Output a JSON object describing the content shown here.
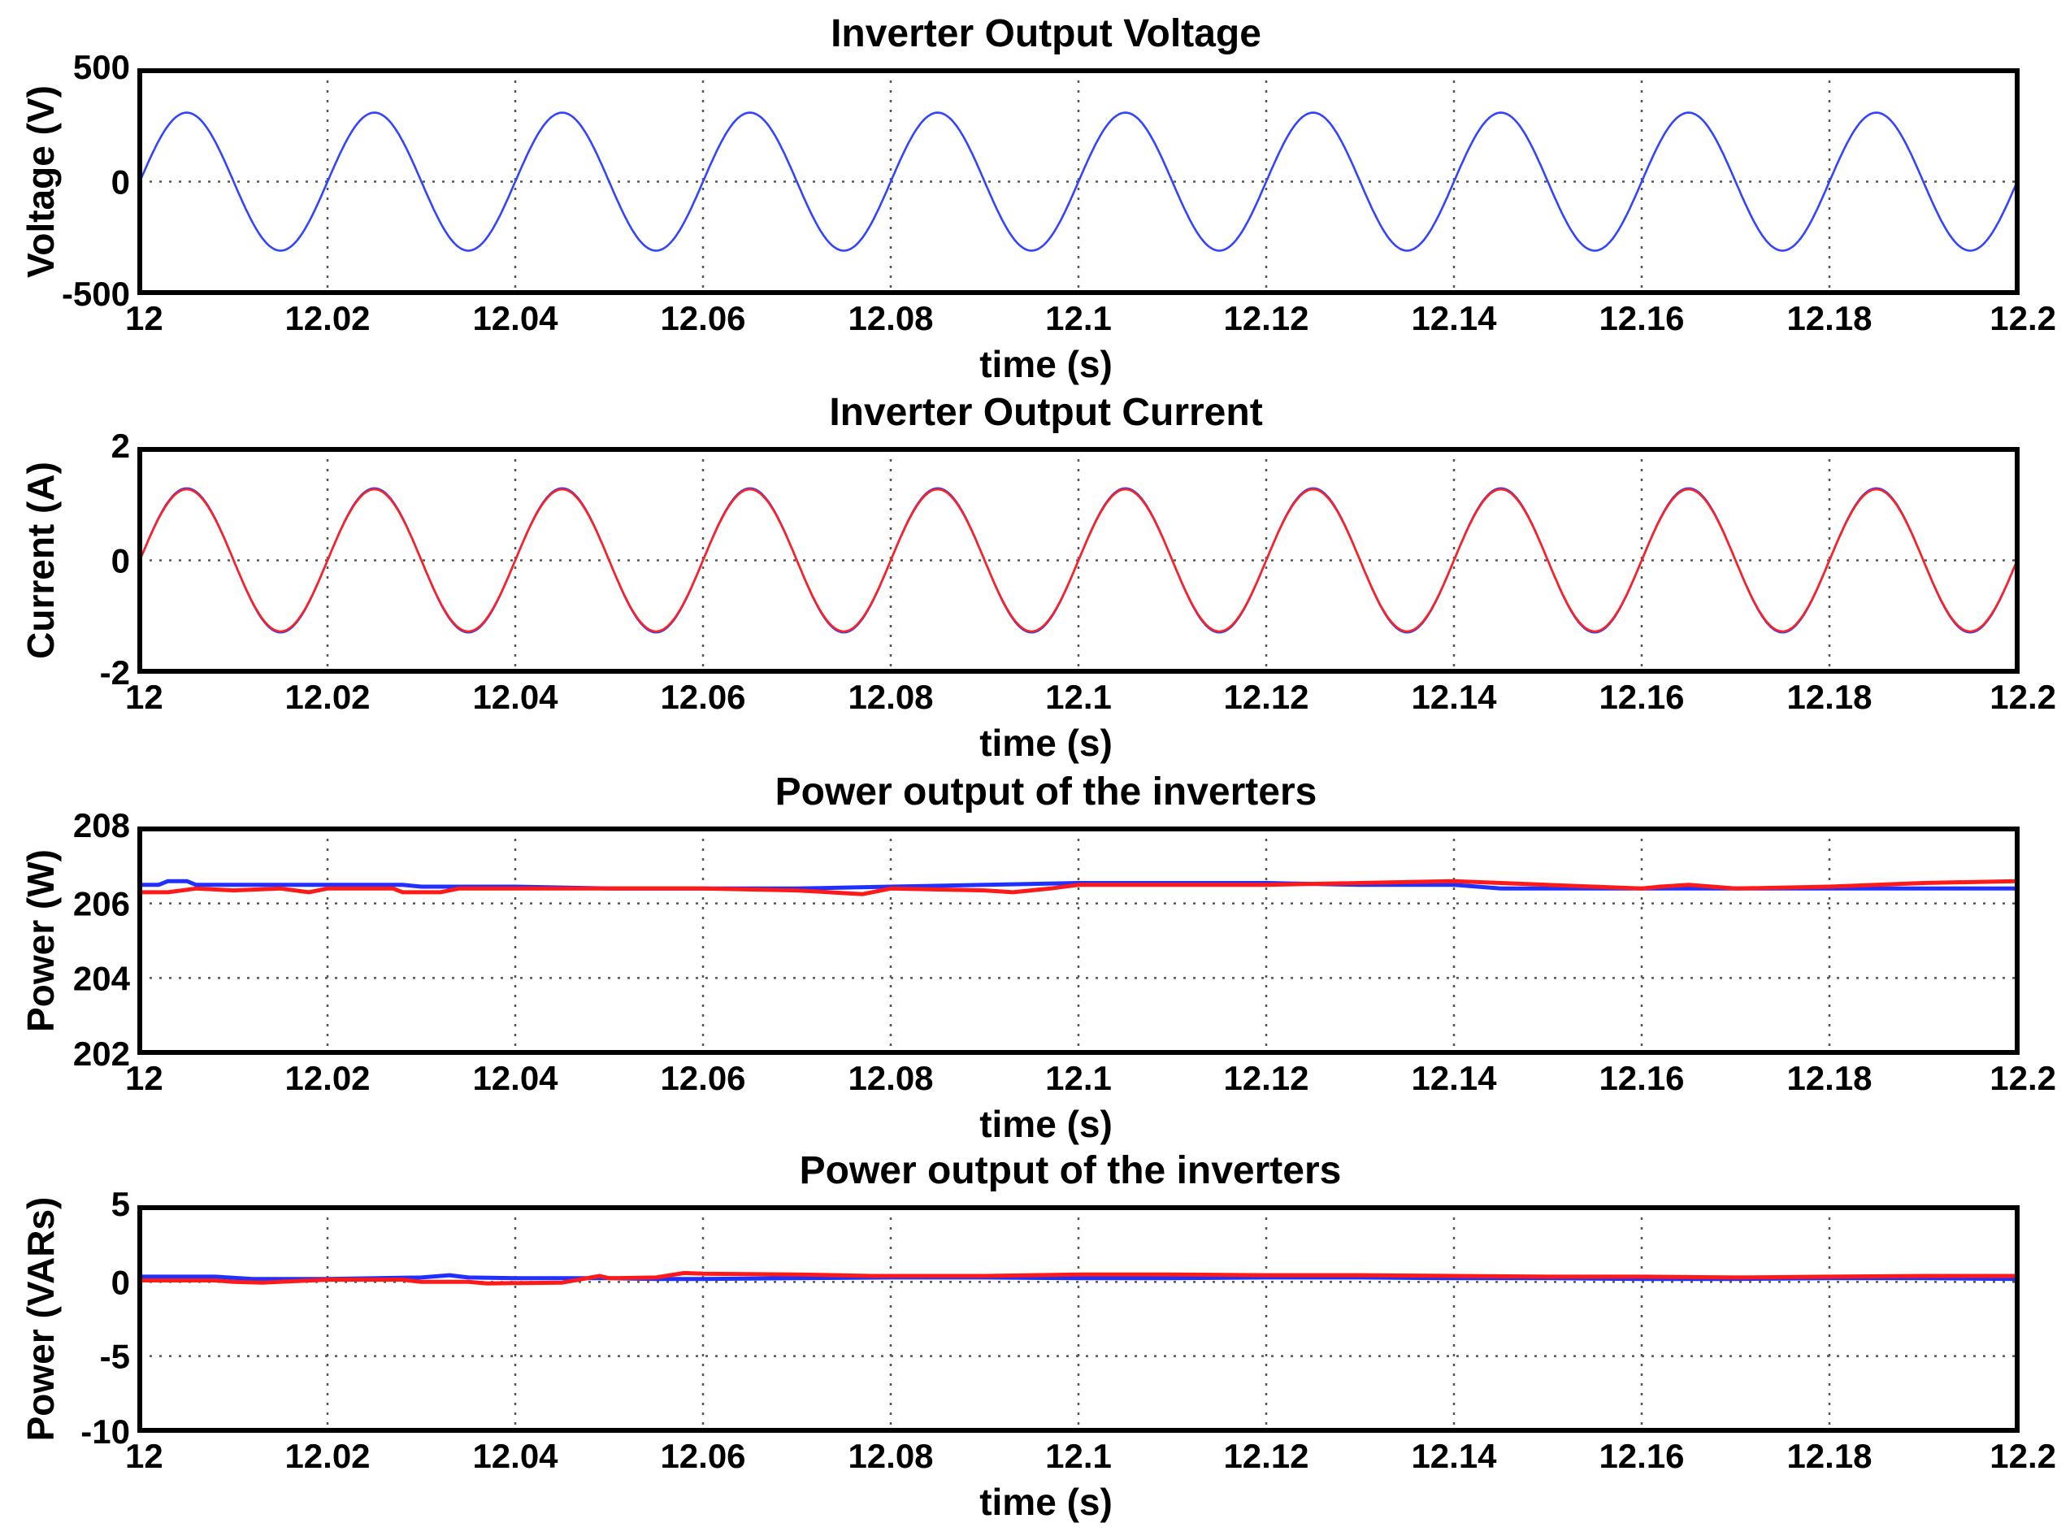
{
  "chart_data": [
    {
      "type": "line",
      "title": "Inverter Output Voltage",
      "xlabel": "time (s)",
      "ylabel": "Voltage (V)",
      "xlim": [
        12,
        12.2
      ],
      "ylim": [
        -500,
        500
      ],
      "xticks": [
        "12",
        "12.02",
        "12.04",
        "12.06",
        "12.08",
        "12.1",
        "12.12",
        "12.14",
        "12.16",
        "12.18",
        "12.2"
      ],
      "yticks": [
        "-500",
        "0",
        "500"
      ],
      "yticks_values": [
        -500,
        0,
        500
      ],
      "grid": true,
      "series": [
        {
          "color": "#3344ff",
          "waveform": "sine",
          "amplitude": 311,
          "frequency_hz": 50,
          "phase_deg": 0
        }
      ]
    },
    {
      "type": "line",
      "title": "Inverter Output Current",
      "xlabel": "time (s)",
      "ylabel": "Current (A)",
      "xlim": [
        12,
        12.2
      ],
      "ylim": [
        -2,
        2
      ],
      "xticks": [
        "12",
        "12.02",
        "12.04",
        "12.06",
        "12.08",
        "12.1",
        "12.12",
        "12.14",
        "12.16",
        "12.18",
        "12.2"
      ],
      "yticks": [
        "-2",
        "0",
        "2"
      ],
      "yticks_values": [
        -2,
        0,
        2
      ],
      "grid": true,
      "series": [
        {
          "color": "#3344ff",
          "waveform": "sine",
          "amplitude": 1.3,
          "frequency_hz": 50,
          "phase_deg": 0
        },
        {
          "color": "#ff2020",
          "waveform": "sine",
          "amplitude": 1.28,
          "frequency_hz": 50,
          "phase_deg": 0
        }
      ]
    },
    {
      "type": "line",
      "title": "Power output of the inverters",
      "xlabel": "time (s)",
      "ylabel": "Power (W)",
      "xlim": [
        12,
        12.2
      ],
      "ylim": [
        202,
        208
      ],
      "xticks": [
        "12",
        "12.02",
        "12.04",
        "12.06",
        "12.08",
        "12.1",
        "12.12",
        "12.14",
        "12.16",
        "12.18",
        "12.2"
      ],
      "yticks": [
        "202",
        "204",
        "206",
        "208"
      ],
      "yticks_values": [
        202,
        204,
        206,
        208
      ],
      "grid": true,
      "series": [
        {
          "color": "#2030ff",
          "x": [
            12,
            12.002,
            12.003,
            12.005,
            12.006,
            12.007,
            12.01,
            12.02,
            12.028,
            12.03,
            12.04,
            12.05,
            12.06,
            12.07,
            12.08,
            12.09,
            12.1,
            12.11,
            12.12,
            12.13,
            12.14,
            12.145,
            12.15,
            12.16,
            12.17,
            12.18,
            12.19,
            12.2
          ],
          "y": [
            206.5,
            206.5,
            206.6,
            206.6,
            206.5,
            206.5,
            206.5,
            206.5,
            206.5,
            206.45,
            206.45,
            206.4,
            206.4,
            206.4,
            206.45,
            206.5,
            206.55,
            206.55,
            206.55,
            206.5,
            206.5,
            206.4,
            206.4,
            206.4,
            206.4,
            206.4,
            206.4,
            206.4
          ]
        },
        {
          "color": "#ff1a1a",
          "x": [
            12,
            12.003,
            12.006,
            12.01,
            12.015,
            12.018,
            12.02,
            12.027,
            12.028,
            12.032,
            12.034,
            12.04,
            12.05,
            12.06,
            12.07,
            12.077,
            12.08,
            12.09,
            12.093,
            12.097,
            12.1,
            12.11,
            12.12,
            12.13,
            12.14,
            12.15,
            12.16,
            12.162,
            12.165,
            12.17,
            12.18,
            12.19,
            12.2
          ],
          "y": [
            206.3,
            206.3,
            206.4,
            206.35,
            206.4,
            206.3,
            206.4,
            206.4,
            206.3,
            206.3,
            206.4,
            206.4,
            206.4,
            206.4,
            206.35,
            206.25,
            206.4,
            206.35,
            206.3,
            206.4,
            206.5,
            206.5,
            206.5,
            206.55,
            206.6,
            206.5,
            206.4,
            206.45,
            206.5,
            206.4,
            206.45,
            206.55,
            206.6
          ]
        }
      ]
    },
    {
      "type": "line",
      "title": "Power output of the inverters",
      "xlabel": "time (s)",
      "ylabel": "Power (VARs)",
      "xlim": [
        12,
        12.2
      ],
      "ylim": [
        -10,
        5
      ],
      "xticks": [
        "12",
        "12.02",
        "12.04",
        "12.06",
        "12.08",
        "12.1",
        "12.12",
        "12.14",
        "12.16",
        "12.18",
        "12.2"
      ],
      "yticks": [
        "-10",
        "-5",
        "0",
        "5"
      ],
      "yticks_values": [
        -10,
        -5,
        0,
        5
      ],
      "grid": true,
      "series": [
        {
          "color": "#2030ff",
          "x": [
            12,
            12.008,
            12.012,
            12.02,
            12.03,
            12.033,
            12.035,
            12.04,
            12.05,
            12.055,
            12.06,
            12.07,
            12.08,
            12.09,
            12.1,
            12.11,
            12.12,
            12.13,
            12.14,
            12.15,
            12.16,
            12.17,
            12.18,
            12.19,
            12.2
          ],
          "y": [
            0.35,
            0.35,
            0.2,
            0.2,
            0.3,
            0.45,
            0.3,
            0.25,
            0.25,
            0.2,
            0.2,
            0.25,
            0.3,
            0.3,
            0.25,
            0.25,
            0.3,
            0.3,
            0.25,
            0.25,
            0.2,
            0.2,
            0.25,
            0.25,
            0.2
          ]
        },
        {
          "color": "#ff1a1a",
          "x": [
            12,
            12.008,
            12.01,
            12.013,
            12.02,
            12.028,
            12.03,
            12.035,
            12.037,
            12.045,
            12.049,
            12.05,
            12.055,
            12.058,
            12.06,
            12.07,
            12.078,
            12.08,
            12.09,
            12.1,
            12.11,
            12.12,
            12.13,
            12.14,
            12.15,
            12.16,
            12.17,
            12.18,
            12.19,
            12.2
          ],
          "y": [
            0.1,
            0.1,
            0.0,
            -0.05,
            0.15,
            0.15,
            0.0,
            0.0,
            -0.1,
            -0.05,
            0.4,
            0.25,
            0.3,
            0.6,
            0.55,
            0.5,
            0.4,
            0.4,
            0.4,
            0.5,
            0.5,
            0.45,
            0.45,
            0.4,
            0.35,
            0.35,
            0.3,
            0.35,
            0.4,
            0.4
          ]
        }
      ]
    }
  ]
}
